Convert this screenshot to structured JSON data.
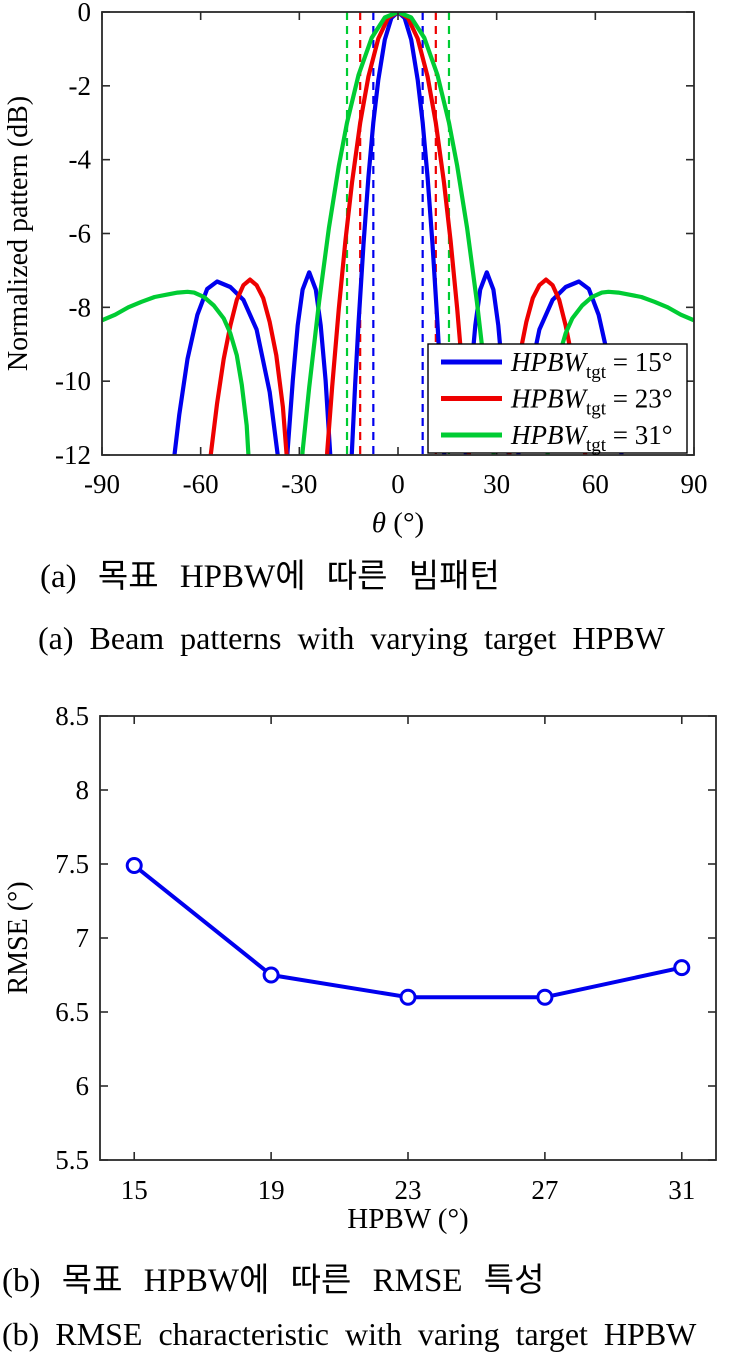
{
  "page": {
    "background": "#ffffff"
  },
  "captions": {
    "a_korean": "(a) 목표 HPBW에 따른 빔패턴",
    "a_english": "(a) Beam patterns with varying target HPBW",
    "b_korean": "(b) 목표 HPBW에 따른 RMSE 특성",
    "b_english": "(b) RMSE characteristic with varing target HPBW"
  },
  "colors": {
    "blue": "#0000ee",
    "red": "#ee0000",
    "green": "#00cc33",
    "axis": "#2a2a2a"
  },
  "chart_data": [
    {
      "id": "beam-pattern",
      "type": "line",
      "title": "",
      "xlabel": {
        "symbol": "θ",
        "unit": " (°)"
      },
      "ylabel": "Normalized pattern (dB)",
      "xlim": [
        -90,
        90
      ],
      "ylim": [
        -12,
        0
      ],
      "xticks": [
        -90,
        -60,
        -30,
        0,
        30,
        60,
        90
      ],
      "yticks": [
        0,
        -2,
        -4,
        -6,
        -8,
        -10,
        -12
      ],
      "grid": false,
      "legend_position": "bottom-right",
      "hpbw_half_power_lines": [
        {
          "x": -7.5,
          "color": "#0000ee"
        },
        {
          "x": 7.5,
          "color": "#0000ee"
        },
        {
          "x": -11.5,
          "color": "#ee0000"
        },
        {
          "x": 11.5,
          "color": "#ee0000"
        },
        {
          "x": -15.5,
          "color": "#00cc33"
        },
        {
          "x": 15.5,
          "color": "#00cc33"
        }
      ],
      "series": [
        {
          "legend": {
            "prefix": "HPBW",
            "subscript": "tgt",
            "suffix": " = 15°"
          },
          "color": "#0000ee",
          "points": [
            [
              -90,
              -14
            ],
            [
              -68.5,
              -12.4
            ],
            [
              -66.5,
              -10.9
            ],
            [
              -64,
              -9.4
            ],
            [
              -61,
              -8.2
            ],
            [
              -58,
              -7.5
            ],
            [
              -55,
              -7.3
            ],
            [
              -51,
              -7.45
            ],
            [
              -47,
              -7.8
            ],
            [
              -43,
              -8.6
            ],
            [
              -39,
              -10.3
            ],
            [
              -36,
              -12.4
            ],
            [
              -34,
              -12.4
            ],
            [
              -32,
              -9.98
            ],
            [
              -30.5,
              -8.49
            ],
            [
              -29,
              -7.52
            ],
            [
              -27,
              -7.05
            ],
            [
              -25,
              -7.52
            ],
            [
              -23.5,
              -8.49
            ],
            [
              -22,
              -9.98
            ],
            [
              -20.3,
              -12.4
            ],
            [
              -14.3,
              -12.4
            ],
            [
              -14,
              -11.85
            ],
            [
              -13,
              -10.06
            ],
            [
              -12,
              -8.44
            ],
            [
              -10.5,
              -6.29
            ],
            [
              -9,
              -4.48
            ],
            [
              -7.5,
              -3
            ],
            [
              -6,
              -1.84
            ],
            [
              -4,
              -0.75
            ],
            [
              -2,
              -0.16
            ],
            [
              0,
              0
            ],
            [
              2,
              -0.16
            ],
            [
              4,
              -0.75
            ],
            [
              6,
              -1.84
            ],
            [
              7.5,
              -3
            ],
            [
              9,
              -4.48
            ],
            [
              10.5,
              -6.29
            ],
            [
              12,
              -8.44
            ],
            [
              13,
              -10.06
            ],
            [
              14,
              -11.85
            ],
            [
              14.3,
              -12.4
            ],
            [
              20.3,
              -12.4
            ],
            [
              22,
              -9.98
            ],
            [
              23.5,
              -8.49
            ],
            [
              25,
              -7.52
            ],
            [
              27,
              -7.05
            ],
            [
              29,
              -7.52
            ],
            [
              30.5,
              -8.49
            ],
            [
              32,
              -9.98
            ],
            [
              34,
              -12.4
            ],
            [
              36,
              -12.4
            ],
            [
              39,
              -10.3
            ],
            [
              43,
              -8.6
            ],
            [
              47,
              -7.8
            ],
            [
              51,
              -7.45
            ],
            [
              55,
              -7.3
            ],
            [
              58,
              -7.5
            ],
            [
              61,
              -8.2
            ],
            [
              64,
              -9.4
            ],
            [
              66.5,
              -10.9
            ],
            [
              68.5,
              -12.4
            ],
            [
              90,
              -14
            ]
          ]
        },
        {
          "legend": {
            "prefix": "HPBW",
            "subscript": "tgt",
            "suffix": " = 23°"
          },
          "color": "#ee0000",
          "points": [
            [
              -90,
              -14
            ],
            [
              -57.5,
              -12.4
            ],
            [
              -55,
              -10.6
            ],
            [
              -53,
              -9.4
            ],
            [
              -51,
              -8.5
            ],
            [
              -49,
              -7.8
            ],
            [
              -47,
              -7.4
            ],
            [
              -45,
              -7.25
            ],
            [
              -43,
              -7.4
            ],
            [
              -41,
              -7.75
            ],
            [
              -39,
              -8.4
            ],
            [
              -37,
              -9.3
            ],
            [
              -35,
              -10.7
            ],
            [
              -33.5,
              -12.4
            ],
            [
              -21.8,
              -12.4
            ],
            [
              -21.5,
              -11.88
            ],
            [
              -20,
              -10.14
            ],
            [
              -18,
              -8.04
            ],
            [
              -16,
              -6.2
            ],
            [
              -14,
              -4.62
            ],
            [
              -11.5,
              -3
            ],
            [
              -9,
              -1.75
            ],
            [
              -6,
              -0.72
            ],
            [
              -3,
              -0.16
            ],
            [
              0,
              0
            ],
            [
              3,
              -0.16
            ],
            [
              6,
              -0.72
            ],
            [
              9,
              -1.75
            ],
            [
              11.5,
              -3
            ],
            [
              14,
              -4.62
            ],
            [
              16,
              -6.2
            ],
            [
              18,
              -8.04
            ],
            [
              20,
              -10.14
            ],
            [
              21.5,
              -11.88
            ],
            [
              21.8,
              -12.4
            ],
            [
              33.5,
              -12.4
            ],
            [
              35,
              -10.7
            ],
            [
              37,
              -9.3
            ],
            [
              39,
              -8.4
            ],
            [
              41,
              -7.75
            ],
            [
              43,
              -7.4
            ],
            [
              45,
              -7.25
            ],
            [
              47,
              -7.4
            ],
            [
              49,
              -7.8
            ],
            [
              51,
              -8.5
            ],
            [
              53,
              -9.4
            ],
            [
              55,
              -10.6
            ],
            [
              57.5,
              -12.4
            ],
            [
              90,
              -14
            ]
          ]
        },
        {
          "legend": {
            "prefix": "HPBW",
            "subscript": "tgt",
            "suffix": " = 31°"
          },
          "color": "#00cc33",
          "points": [
            [
              -90,
              -8.35
            ],
            [
              -86,
              -8.2
            ],
            [
              -82,
              -8.0
            ],
            [
              -78,
              -7.85
            ],
            [
              -74,
              -7.72
            ],
            [
              -70,
              -7.65
            ],
            [
              -67,
              -7.6
            ],
            [
              -64,
              -7.58
            ],
            [
              -62,
              -7.6
            ],
            [
              -59,
              -7.72
            ],
            [
              -56,
              -7.95
            ],
            [
              -53,
              -8.3
            ],
            [
              -51,
              -8.7
            ],
            [
              -49,
              -9.3
            ],
            [
              -47.5,
              -10.1
            ],
            [
              -46,
              -11.2
            ],
            [
              -45.2,
              -12.4
            ],
            [
              -29.4,
              -12.4
            ],
            [
              -29,
              -11.9
            ],
            [
              -27,
              -10.17
            ],
            [
              -24,
              -7.85
            ],
            [
              -21,
              -5.85
            ],
            [
              -18,
              -4.17
            ],
            [
              -15.5,
              -3
            ],
            [
              -12,
              -1.71
            ],
            [
              -8,
              -0.7
            ],
            [
              -4,
              -0.15
            ],
            [
              0,
              0
            ],
            [
              4,
              -0.15
            ],
            [
              8,
              -0.7
            ],
            [
              12,
              -1.71
            ],
            [
              15.5,
              -3
            ],
            [
              18,
              -4.17
            ],
            [
              21,
              -5.85
            ],
            [
              24,
              -7.85
            ],
            [
              27,
              -10.17
            ],
            [
              29,
              -11.9
            ],
            [
              29.4,
              -12.4
            ],
            [
              45.2,
              -12.4
            ],
            [
              46,
              -11.2
            ],
            [
              47.5,
              -10.1
            ],
            [
              49,
              -9.3
            ],
            [
              51,
              -8.7
            ],
            [
              53,
              -8.3
            ],
            [
              56,
              -7.95
            ],
            [
              59,
              -7.72
            ],
            [
              62,
              -7.6
            ],
            [
              64,
              -7.58
            ],
            [
              67,
              -7.6
            ],
            [
              70,
              -7.65
            ],
            [
              74,
              -7.72
            ],
            [
              78,
              -7.85
            ],
            [
              82,
              -8.0
            ],
            [
              86,
              -8.2
            ],
            [
              90,
              -8.35
            ]
          ]
        }
      ]
    },
    {
      "id": "rmse",
      "type": "line",
      "title": "",
      "xlabel": "HPBW (°)",
      "ylabel": "RMSE (°)",
      "xlim": [
        14,
        32
      ],
      "ylim": [
        5.5,
        8.5
      ],
      "xticks": [
        15,
        19,
        23,
        27,
        31
      ],
      "yticks": [
        5.5,
        6,
        6.5,
        7,
        7.5,
        8,
        8.5
      ],
      "grid": false,
      "color": "#0000ee",
      "marker": "circle",
      "x": [
        15,
        19,
        23,
        27,
        31
      ],
      "y": [
        7.49,
        6.75,
        6.6,
        6.6,
        6.8
      ]
    }
  ]
}
